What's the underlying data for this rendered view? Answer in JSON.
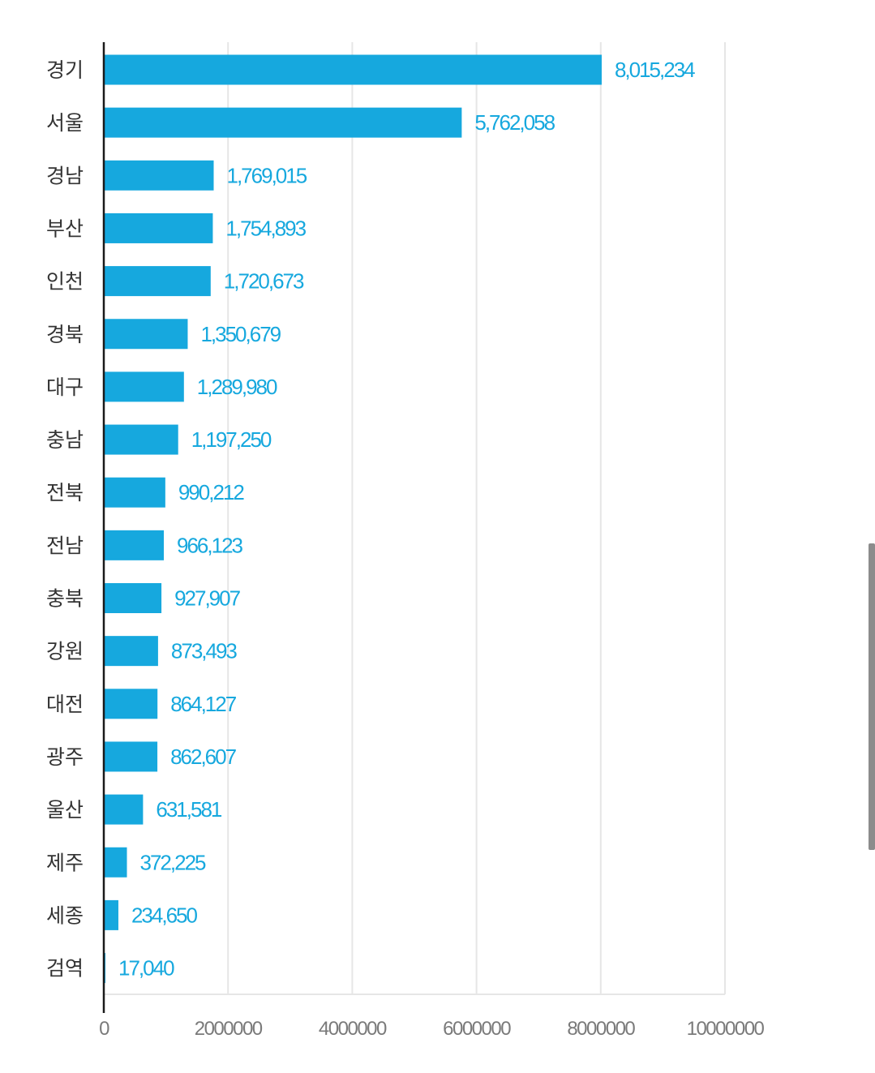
{
  "chart_data": {
    "type": "bar",
    "orientation": "horizontal",
    "categories": [
      "경기",
      "서울",
      "경남",
      "부산",
      "인천",
      "경북",
      "대구",
      "충남",
      "전북",
      "전남",
      "충북",
      "강원",
      "대전",
      "광주",
      "울산",
      "제주",
      "세종",
      "검역"
    ],
    "values": [
      8015234,
      5762058,
      1769015,
      1754893,
      1720673,
      1350679,
      1289980,
      1197250,
      990212,
      966123,
      927907,
      873493,
      864127,
      862607,
      631581,
      372225,
      234650,
      17040
    ],
    "value_labels": [
      "8,015,234",
      "5,762,058",
      "1,769,015",
      "1,754,893",
      "1,720,673",
      "1,350,679",
      "1,289,980",
      "1,197,250",
      "990,212",
      "966,123",
      "927,907",
      "873,493",
      "864,127",
      "862,607",
      "631,581",
      "372,225",
      "234,650",
      "17,040"
    ],
    "xlim": [
      0,
      10000000
    ],
    "x_ticks": [
      0,
      2000000,
      4000000,
      6000000,
      8000000,
      10000000
    ],
    "x_tick_labels": [
      "0",
      "2000000",
      "4000000",
      "6000000",
      "8000000",
      "10000000"
    ],
    "grid": "vertical",
    "legend": "none",
    "bar_color": "#16a8de",
    "label_color": "#16a8de"
  }
}
